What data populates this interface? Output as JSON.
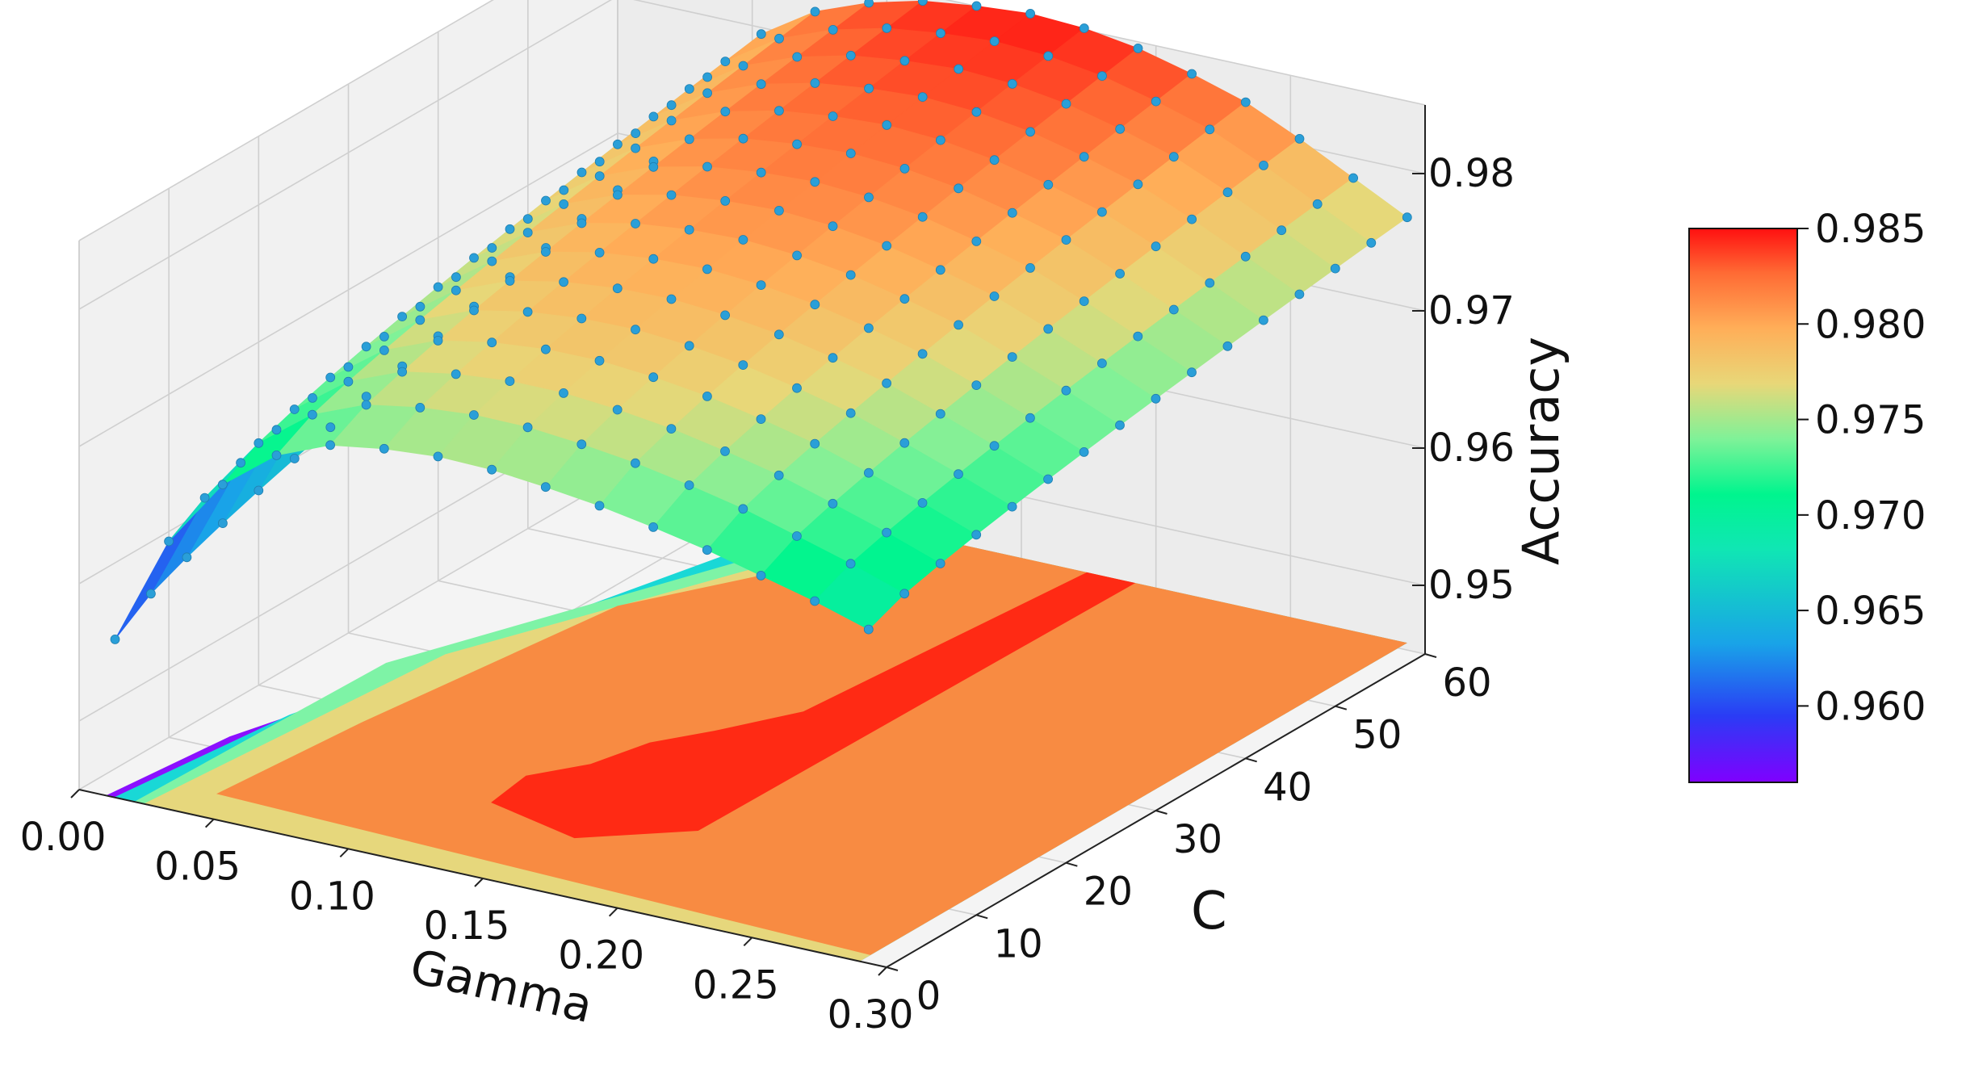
{
  "chart_data": {
    "type": "surface3d",
    "title": "",
    "xlabel": "Gamma",
    "ylabel": "C",
    "zlabel": "Accuracy",
    "xlim": [
      0.0,
      0.3
    ],
    "ylim": [
      0,
      60
    ],
    "zlim": [
      0.945,
      0.985
    ],
    "x_ticks": [
      "0.00",
      "0.05",
      "0.10",
      "0.15",
      "0.20",
      "0.25",
      "0.30"
    ],
    "y_ticks": [
      "0",
      "10",
      "20",
      "30",
      "40",
      "50",
      "60"
    ],
    "z_ticks": [
      "0.95",
      "0.96",
      "0.97",
      "0.98"
    ],
    "gamma_values": [
      0.01,
      0.03,
      0.05,
      0.07,
      0.09,
      0.11,
      0.13,
      0.15,
      0.17,
      0.19,
      0.21,
      0.23,
      0.25,
      0.27,
      0.29
    ],
    "c_values": [
      1,
      5,
      9,
      13,
      17,
      21,
      25,
      29,
      33,
      37,
      41,
      45,
      49,
      53,
      57,
      61
    ],
    "accuracy_profile_c1": [
      0.956,
      0.964,
      0.969,
      0.972,
      0.9736,
      0.9742,
      0.9745,
      0.9744,
      0.974,
      0.9735,
      0.9728,
      0.972,
      0.971,
      0.97,
      0.9688
    ],
    "accuracy_profile_c61": [
      0.968,
      0.975,
      0.979,
      0.9815,
      0.983,
      0.984,
      0.9845,
      0.9848,
      0.9846,
      0.984,
      0.983,
      0.9818,
      0.98,
      0.978,
      0.976
    ],
    "surface_colormap": "rainbow",
    "contour_floor": true,
    "contour_colors": [
      "#ff2a14",
      "#f88b42",
      "#e6d77c",
      "#7ef3a6",
      "#19d8d6",
      "#8b10ff"
    ],
    "marker_color": "#2a9fd8",
    "grid": true,
    "colorbar": {
      "position": "right",
      "ticks": [
        "0.985",
        "0.980",
        "0.975",
        "0.970",
        "0.965",
        "0.960"
      ],
      "range": [
        0.956,
        0.985
      ]
    }
  }
}
